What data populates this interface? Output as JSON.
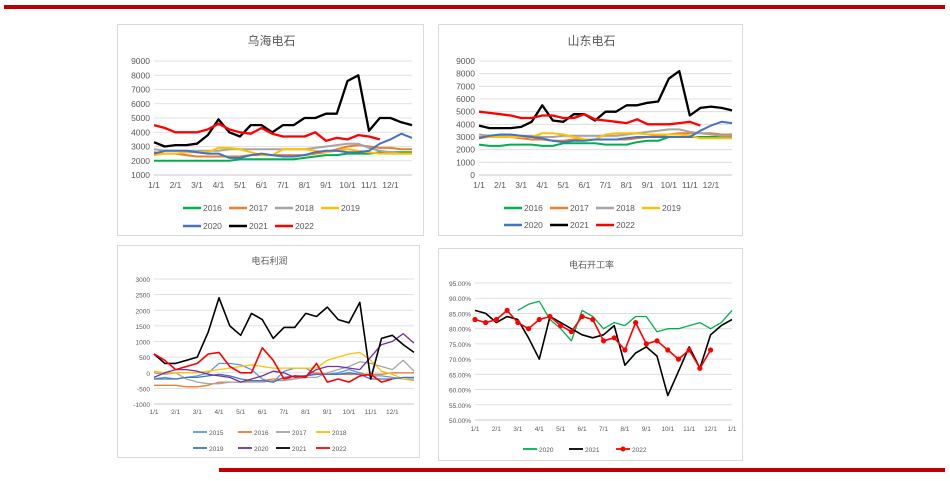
{
  "colors": {
    "accent_bar": "#c00000"
  },
  "chart_data": [
    {
      "type": "line",
      "title": "乌海电石",
      "ylim": [
        1000,
        9000
      ],
      "yticks": [
        1000,
        2000,
        3000,
        4000,
        5000,
        6000,
        7000,
        8000,
        9000
      ],
      "xtick_labels": [
        "1/1",
        "2/1",
        "3/1",
        "4/1",
        "5/1",
        "6/1",
        "7/1",
        "8/1",
        "9/1",
        "10/1",
        "11/1",
        "12/1"
      ],
      "grid": true,
      "legend": "bottom",
      "x": [
        "1/1",
        "1/16",
        "2/1",
        "2/15",
        "3/1",
        "3/16",
        "4/1",
        "4/16",
        "5/1",
        "5/16",
        "6/1",
        "6/16",
        "7/1",
        "7/16",
        "8/1",
        "8/16",
        "9/1",
        "9/16",
        "10/1",
        "10/16",
        "11/1",
        "11/16",
        "12/1",
        "12/16",
        "12/31"
      ],
      "series": [
        {
          "name": "2016",
          "color": "#00b050",
          "values": [
            2000,
            2000,
            2000,
            2000,
            2000,
            2000,
            2000,
            2000,
            2100,
            2100,
            2100,
            2100,
            2100,
            2100,
            2200,
            2300,
            2400,
            2400,
            2500,
            2500,
            2500,
            2600,
            2600,
            2600,
            2600
          ]
        },
        {
          "name": "2017",
          "color": "#ed7d31",
          "values": [
            2600,
            2500,
            2500,
            2400,
            2300,
            2300,
            2300,
            2300,
            2300,
            2400,
            2400,
            2400,
            2400,
            2400,
            2400,
            2500,
            2600,
            2800,
            3000,
            3100,
            3000,
            2900,
            2900,
            2800,
            2800
          ]
        },
        {
          "name": "2018",
          "color": "#a5a5a5",
          "values": [
            2800,
            2700,
            2700,
            2700,
            2700,
            2700,
            2700,
            2800,
            2800,
            2800,
            2800,
            2800,
            2800,
            2800,
            2800,
            2900,
            3000,
            3100,
            3200,
            3200,
            2900,
            2700,
            2600,
            2500,
            2500
          ]
        },
        {
          "name": "2019",
          "color": "#ffc000",
          "values": [
            2400,
            2500,
            2500,
            2600,
            2600,
            2600,
            2900,
            2900,
            2800,
            2600,
            2400,
            2400,
            2800,
            2800,
            2800,
            2700,
            2600,
            2700,
            2800,
            2700,
            2600,
            2500,
            2500,
            2500,
            2500
          ]
        },
        {
          "name": "2020",
          "color": "#4472c4",
          "values": [
            2500,
            2700,
            2700,
            2700,
            2600,
            2500,
            2500,
            2200,
            2200,
            2400,
            2500,
            2400,
            2300,
            2300,
            2400,
            2600,
            2700,
            2700,
            2600,
            2600,
            2700,
            3200,
            3500,
            3900,
            3600
          ]
        },
        {
          "name": "2021",
          "color": "#000000",
          "values": [
            3300,
            3000,
            3100,
            3100,
            3200,
            3800,
            4900,
            4000,
            3700,
            4500,
            4500,
            4000,
            4500,
            4500,
            5000,
            5000,
            5300,
            5300,
            7600,
            8000,
            4100,
            5000,
            5000,
            4700,
            4500
          ]
        },
        {
          "name": "2022",
          "color": "#ff0000",
          "values": [
            4500,
            4300,
            4000,
            4000,
            4000,
            4200,
            4600,
            4200,
            4000,
            3900,
            4300,
            3900,
            3700,
            3700,
            3700,
            4000,
            3400,
            3600,
            3500,
            3800,
            3700,
            3500,
            null,
            null,
            null
          ]
        }
      ]
    },
    {
      "type": "line",
      "title": "山东电石",
      "ylim": [
        0,
        9000
      ],
      "yticks": [
        0,
        1000,
        2000,
        3000,
        4000,
        5000,
        6000,
        7000,
        8000,
        9000
      ],
      "xtick_labels": [
        "1/1",
        "2/1",
        "3/1",
        "4/1",
        "5/1",
        "6/1",
        "7/1",
        "8/1",
        "9/1",
        "10/1",
        "11/1",
        "12/1"
      ],
      "grid": true,
      "legend": "bottom",
      "x": [
        "1/1",
        "1/16",
        "2/1",
        "2/15",
        "3/1",
        "3/16",
        "4/1",
        "4/16",
        "5/1",
        "5/16",
        "6/1",
        "6/16",
        "7/1",
        "7/16",
        "8/1",
        "8/16",
        "9/1",
        "9/16",
        "10/1",
        "10/16",
        "11/1",
        "11/16",
        "12/1",
        "12/16",
        "12/31"
      ],
      "series": [
        {
          "name": "2016",
          "color": "#00b050",
          "values": [
            2400,
            2300,
            2300,
            2400,
            2400,
            2400,
            2300,
            2300,
            2500,
            2500,
            2500,
            2500,
            2400,
            2400,
            2400,
            2600,
            2700,
            2700,
            3000,
            3000,
            3000,
            3000,
            3000,
            3000,
            3000
          ]
        },
        {
          "name": "2017",
          "color": "#ed7d31",
          "values": [
            3000,
            3000,
            3000,
            3000,
            2900,
            2800,
            2800,
            2700,
            2700,
            2800,
            2800,
            2800,
            2800,
            2800,
            2800,
            2900,
            3000,
            3100,
            3200,
            3300,
            3300,
            3300,
            3300,
            3200,
            3200
          ]
        },
        {
          "name": "2018",
          "color": "#a5a5a5",
          "values": [
            3200,
            3100,
            3100,
            3100,
            3100,
            3100,
            3000,
            3000,
            3100,
            3100,
            3100,
            3100,
            3100,
            3100,
            3200,
            3300,
            3400,
            3500,
            3600,
            3600,
            3400,
            3300,
            3200,
            3100,
            3100
          ]
        },
        {
          "name": "2019",
          "color": "#ffc000",
          "values": [
            2900,
            3000,
            3000,
            3000,
            3000,
            3000,
            3300,
            3300,
            3200,
            3000,
            2800,
            2800,
            3200,
            3300,
            3300,
            3300,
            3200,
            3200,
            3200,
            3200,
            3100,
            2900,
            2900,
            2900,
            2900
          ]
        },
        {
          "name": "2020",
          "color": "#4472c4",
          "values": [
            2900,
            3100,
            3200,
            3200,
            3100,
            3000,
            2900,
            2700,
            2600,
            2700,
            2700,
            2800,
            2800,
            2800,
            2900,
            3000,
            3000,
            3000,
            3000,
            3000,
            3000,
            3500,
            3900,
            4200,
            4100
          ]
        },
        {
          "name": "2021",
          "color": "#000000",
          "values": [
            3900,
            3700,
            3700,
            3700,
            3800,
            4200,
            5500,
            4300,
            4200,
            4800,
            4800,
            4300,
            5000,
            5000,
            5500,
            5500,
            5700,
            5800,
            7600,
            8200,
            4700,
            5300,
            5400,
            5300,
            5100
          ]
        },
        {
          "name": "2022",
          "color": "#ff0000",
          "values": [
            5000,
            4900,
            4800,
            4700,
            4500,
            4500,
            4700,
            4700,
            4500,
            4500,
            4800,
            4400,
            4300,
            4200,
            4100,
            4400,
            4000,
            4000,
            4000,
            4100,
            4200,
            3900,
            null,
            null,
            null
          ]
        }
      ]
    },
    {
      "type": "line",
      "title": "电石利润",
      "ylim": [
        -1000,
        3000
      ],
      "yticks": [
        -1000,
        -500,
        0,
        500,
        1000,
        1500,
        2000,
        2500,
        3000
      ],
      "xtick_labels": [
        "1/1",
        "2/1",
        "3/1",
        "4/1",
        "5/1",
        "6/1",
        "7/1",
        "8/1",
        "9/1",
        "10/1",
        "11/1",
        "12/1"
      ],
      "grid": true,
      "legend": "bottom",
      "x": [
        "1/1",
        "1/16",
        "2/1",
        "2/15",
        "3/1",
        "3/16",
        "4/1",
        "4/16",
        "5/1",
        "5/16",
        "6/1",
        "6/16",
        "7/1",
        "7/16",
        "8/1",
        "8/16",
        "9/1",
        "9/16",
        "10/1",
        "10/16",
        "11/1",
        "11/16",
        "12/1",
        "12/16",
        "12/31"
      ],
      "series": [
        {
          "name": "2015",
          "color": "#5b9bd5",
          "values": [
            -200,
            -150,
            -200,
            -150,
            -100,
            0,
            300,
            300,
            250,
            100,
            -200,
            -300,
            50,
            150,
            150,
            -50,
            -50,
            0,
            100,
            0,
            -100,
            -100,
            -150,
            -200,
            -200
          ]
        },
        {
          "name": "2016",
          "color": "#ed7d31",
          "values": [
            -400,
            -400,
            -400,
            -450,
            -450,
            -400,
            -300,
            -300,
            -300,
            -250,
            -250,
            -200,
            -200,
            -200,
            -100,
            0,
            -50,
            -50,
            -50,
            -50,
            -50,
            -50,
            0,
            0,
            0
          ]
        },
        {
          "name": "2017",
          "color": "#a5a5a5",
          "values": [
            0,
            -50,
            0,
            -200,
            -300,
            -350,
            -350,
            -300,
            -300,
            -300,
            -300,
            -250,
            -250,
            -200,
            -150,
            -150,
            0,
            100,
            200,
            350,
            300,
            200,
            100,
            400,
            50
          ]
        },
        {
          "name": "2018",
          "color": "#ffc000",
          "values": [
            50,
            0,
            0,
            0,
            0,
            50,
            100,
            150,
            200,
            250,
            200,
            150,
            150,
            150,
            150,
            150,
            400,
            500,
            600,
            650,
            400,
            50,
            -50,
            -200,
            -250
          ]
        },
        {
          "name": "2019",
          "color": "#4472c4",
          "values": [
            -200,
            -200,
            -200,
            -150,
            -150,
            -100,
            -50,
            -100,
            -200,
            -250,
            -250,
            -300,
            -150,
            -100,
            -100,
            -50,
            -50,
            -50,
            0,
            -50,
            -200,
            -200,
            -200,
            -150,
            -150
          ]
        },
        {
          "name": "2020",
          "color": "#7030a0",
          "values": [
            -150,
            0,
            100,
            100,
            50,
            -50,
            -100,
            -150,
            -300,
            -200,
            -100,
            50,
            0,
            -150,
            -100,
            100,
            200,
            200,
            150,
            100,
            500,
            900,
            1000,
            1250,
            950
          ]
        },
        {
          "name": "2021",
          "color": "#000000",
          "values": [
            600,
            300,
            300,
            400,
            500,
            1300,
            2400,
            1500,
            1200,
            1900,
            1700,
            1100,
            1450,
            1450,
            1900,
            1800,
            2100,
            1700,
            1600,
            2250,
            -200,
            1100,
            1200,
            900,
            650
          ]
        },
        {
          "name": "2022",
          "color": "#ff0000",
          "values": [
            600,
            400,
            100,
            200,
            300,
            600,
            650,
            200,
            0,
            0,
            800,
            400,
            -200,
            -100,
            -150,
            300,
            -300,
            -200,
            -300,
            -100,
            -50,
            -300,
            -200,
            null,
            null
          ]
        }
      ]
    },
    {
      "type": "line",
      "title": "电石开工率",
      "ylim": [
        50,
        95
      ],
      "yticks": [
        50,
        55,
        60,
        65,
        70,
        75,
        80,
        85,
        90,
        95
      ],
      "ytick_format": "percent_2dp",
      "xtick_labels": [
        "1/1",
        "2/1",
        "3/1",
        "4/1",
        "5/1",
        "6/1",
        "7/1",
        "8/1",
        "9/1",
        "10/1",
        "11/1",
        "12/1",
        "1/1"
      ],
      "grid": true,
      "legend": "bottom",
      "x": [
        "1/1",
        "1/16",
        "2/1",
        "2/15",
        "3/1",
        "3/16",
        "4/1",
        "4/16",
        "5/1",
        "5/16",
        "6/1",
        "6/16",
        "7/1",
        "7/16",
        "8/1",
        "8/16",
        "9/1",
        "9/16",
        "10/1",
        "10/16",
        "11/1",
        "11/16",
        "12/1",
        "12/16",
        "1/1"
      ],
      "series": [
        {
          "name": "2020",
          "color": "#00b050",
          "values": [
            null,
            null,
            null,
            null,
            86,
            88,
            89,
            83,
            80,
            76,
            86,
            84,
            80,
            82,
            81,
            84,
            84,
            79,
            80,
            80,
            81,
            82,
            80,
            82,
            86
          ]
        },
        {
          "name": "2021",
          "color": "#000000",
          "values": [
            86,
            85,
            82,
            84,
            83,
            77,
            70,
            84,
            82,
            80,
            78,
            77,
            78,
            81,
            68,
            72,
            74,
            71,
            58,
            66,
            74,
            67,
            78,
            81,
            83
          ]
        },
        {
          "name": "2022",
          "color": "#ff0000",
          "markers": true,
          "values": [
            83,
            82,
            83,
            86,
            82,
            80,
            83,
            84,
            81,
            79,
            84,
            83,
            76,
            77,
            73,
            82,
            75,
            76,
            73,
            70,
            73,
            67,
            73,
            null,
            null
          ]
        }
      ]
    }
  ]
}
